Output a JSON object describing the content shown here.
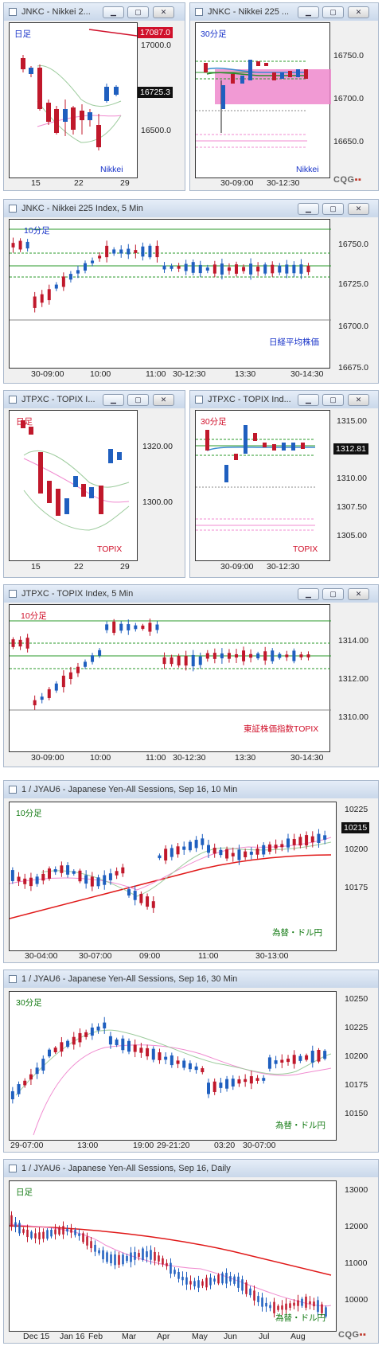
{
  "windows": [
    {
      "title": "JNKC - Nikkei 2...",
      "timeframe": "日足",
      "name": "Nikkei",
      "y_ticks": [
        "17000.0",
        "16500.0"
      ],
      "x_ticks": [
        "15",
        "22",
        "29"
      ],
      "price_high": "17087.0",
      "price_last": "16725.3"
    },
    {
      "title": "JNKC - Nikkei 225 ...",
      "timeframe": "30分足",
      "name": "Nikkei",
      "y_ticks": [
        "16750.0",
        "16700.0",
        "16650.0"
      ],
      "x_ticks": [
        "30-09:00",
        "30-12:30"
      ]
    },
    {
      "title": "JNKC - Nikkei 225 Index, 5 Min",
      "timeframe": "10分足",
      "name": "日経平均株価",
      "y_ticks": [
        "16750.0",
        "16725.0",
        "16700.0",
        "16675.0"
      ],
      "x_ticks": [
        "30-09:00",
        "10:00",
        "11:00",
        "30-12:30",
        "13:30",
        "30-14:30"
      ]
    },
    {
      "title": "JTPXC - TOPIX I...",
      "timeframe": "日足",
      "name": "TOPIX",
      "y_ticks": [
        "1320.00",
        "1300.00"
      ],
      "x_ticks": [
        "15",
        "22",
        "29"
      ]
    },
    {
      "title": "JTPXC - TOPIX Ind...",
      "timeframe": "30分足",
      "name": "TOPIX",
      "y_ticks": [
        "1315.00",
        "1310.00",
        "1307.50",
        "1305.00"
      ],
      "price_last": "1312.81",
      "x_ticks": [
        "30-09:00",
        "30-12:30"
      ]
    },
    {
      "title": "JTPXC - TOPIX Index, 5 Min",
      "timeframe": "10分足",
      "name": "東証株価指数TOPIX",
      "y_ticks": [
        "1314.00",
        "1312.00",
        "1310.00"
      ],
      "x_ticks": [
        "30-09:00",
        "10:00",
        "11:00",
        "30-12:30",
        "13:30",
        "30-14:30"
      ]
    },
    {
      "title": "1 / JYAU6 - Japanese Yen-All Sessions, Sep 16, 10 Min",
      "timeframe": "10分足",
      "name": "為替・ドル円",
      "y_ticks": [
        "10225",
        "10200",
        "10175"
      ],
      "price_last": "10215",
      "x_ticks": [
        "30-04:00",
        "30-07:00",
        "09:00",
        "11:00",
        "30-13:00"
      ]
    },
    {
      "title": "1 / JYAU6 - Japanese Yen-All Sessions, Sep 16, 30 Min",
      "timeframe": "30分足",
      "name": "為替・ドル円",
      "y_ticks": [
        "10250",
        "10225",
        "10200",
        "10175",
        "10150"
      ],
      "x_ticks": [
        "29-07:00",
        "13:00",
        "19:00",
        "29-21:20",
        "03:20",
        "30-07:00"
      ]
    },
    {
      "title": "1 / JYAU6 - Japanese Yen-All Sessions, Sep 16, Daily",
      "timeframe": "日足",
      "name": "為替・ドル円",
      "y_ticks": [
        "13000",
        "12000",
        "11000",
        "10000"
      ],
      "x_ticks": [
        "Dec 15",
        "Jan 16",
        "Feb",
        "Mar",
        "Apr",
        "May",
        "Jun",
        "Jul",
        "Aug"
      ]
    }
  ],
  "logo": {
    "text": "CQG",
    "dots": "▪▪"
  },
  "buttons": {
    "min": "▁",
    "max": "▢",
    "close": "✕"
  },
  "colors": {
    "up": "#1f5fbf",
    "down": "#c0182b",
    "accent_blue": "#1530c8",
    "accent_red": "#d0102a",
    "accent_green": "#137a13",
    "highlight": "#ee55aa"
  }
}
